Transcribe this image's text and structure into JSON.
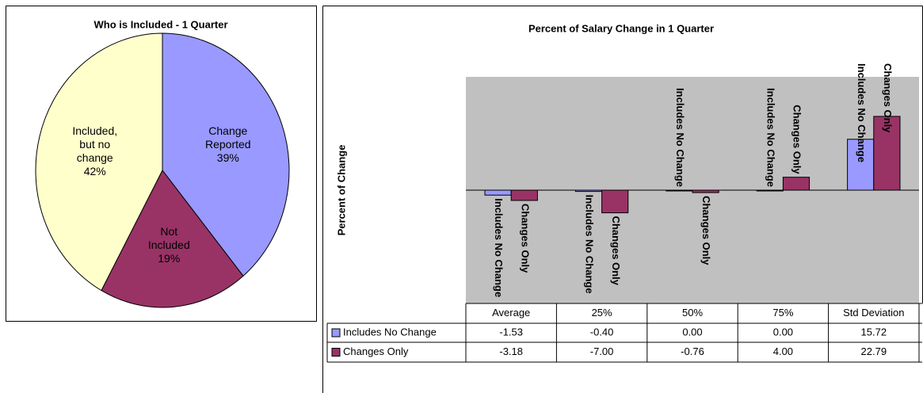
{
  "chart_data": [
    {
      "type": "pie",
      "title": "Who is Included - 1 Quarter",
      "categories": [
        "Change Reported",
        "Not Included",
        "Included, but no change"
      ],
      "values": [
        39,
        19,
        42
      ],
      "value_labels": [
        "39%",
        "19%",
        "42%"
      ],
      "colors": [
        "#9999ff",
        "#993366",
        "#ffffcc"
      ]
    },
    {
      "type": "bar",
      "title": "Percent of Salary Change in 1 Quarter",
      "y_label": "Percent of Change",
      "categories": [
        "Average",
        "25%",
        "50%",
        "75%",
        "Std Deviation"
      ],
      "series": [
        {
          "name": "Includes No Change",
          "color": "#9999ff",
          "values": [
            -1.53,
            -0.4,
            0,
            0,
            15.72
          ],
          "value_labels": [
            "-1.53",
            "-0.40",
            "0.00",
            "0.00",
            "15.72"
          ]
        },
        {
          "name": "Changes Only",
          "color": "#993366",
          "values": [
            -3.18,
            -7,
            -0.76,
            4,
            22.79
          ],
          "value_labels": [
            "-3.18",
            "-7.00",
            "-0.76",
            "4.00",
            "22.79"
          ]
        }
      ],
      "ylim": [
        -35,
        35
      ],
      "data_table": true
    }
  ]
}
